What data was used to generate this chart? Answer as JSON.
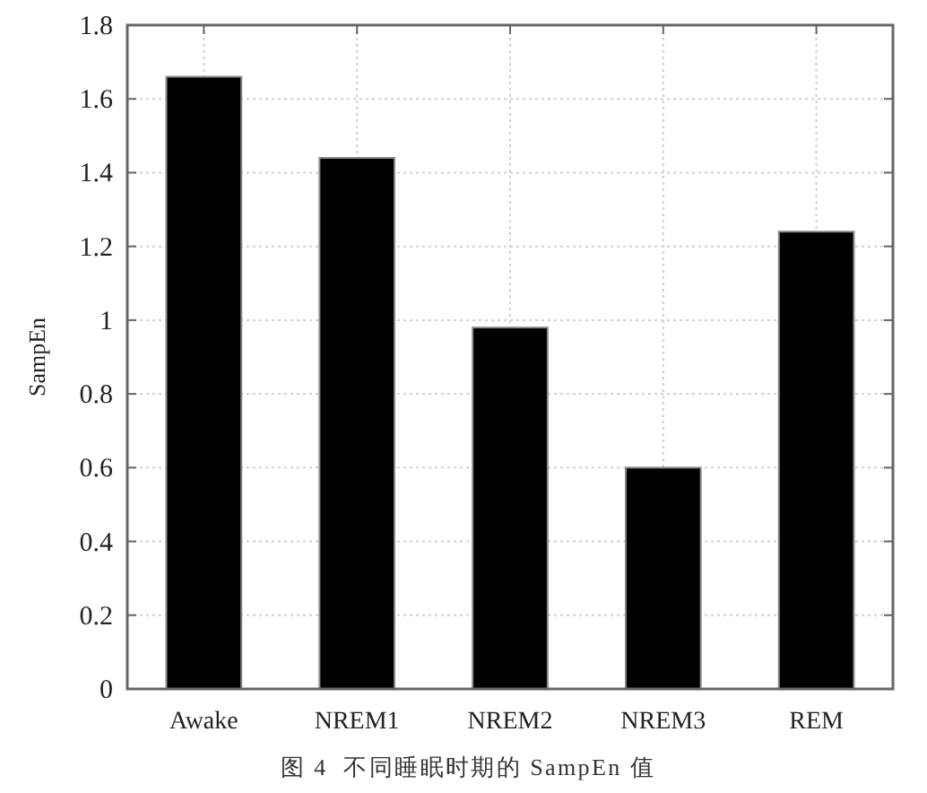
{
  "chart_data": {
    "type": "bar",
    "categories": [
      "Awake",
      "NREM1",
      "NREM2",
      "NREM3",
      "REM"
    ],
    "values": [
      1.66,
      1.44,
      0.98,
      0.6,
      1.24
    ],
    "color": "#000000",
    "ylim": [
      0,
      1.8
    ],
    "yticks": [
      0,
      0.2,
      0.4,
      0.6,
      0.8,
      1,
      1.2,
      1.4,
      1.6,
      1.8
    ],
    "ylabel": "SampEn",
    "grid": true,
    "annotations": [
      "图 4  不同睡眠时期的 SampEn 值"
    ]
  }
}
